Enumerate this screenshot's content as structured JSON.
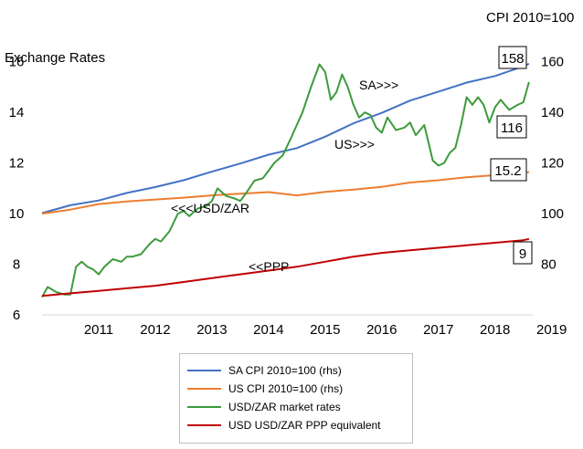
{
  "chart_data": {
    "type": "line",
    "title": "",
    "left_axis_title": "Exchange Rates",
    "right_axis_title": "CPI 2010=100",
    "x_ticks": [
      "2011",
      "2012",
      "2013",
      "2014",
      "2015",
      "2016",
      "2017",
      "2018",
      "2019"
    ],
    "x_range": [
      2010.5,
      2019.15
    ],
    "left_axis": {
      "ylim": [
        6,
        17
      ],
      "ticks": [
        6,
        8,
        10,
        12,
        14,
        16
      ]
    },
    "right_axis": {
      "ylim": [
        60,
        170
      ],
      "ticks": [
        80,
        100,
        120,
        140,
        160
      ]
    },
    "grid": false,
    "legend_position": "bottom",
    "series": [
      {
        "name": "SA CPI 2010=100 (rhs)",
        "axis": "right",
        "color": "#4472c4",
        "x": [
          2010.5,
          2011.0,
          2011.5,
          2012.0,
          2012.5,
          2013.0,
          2013.5,
          2014.0,
          2014.5,
          2015.0,
          2015.5,
          2016.0,
          2016.5,
          2017.0,
          2017.5,
          2018.0,
          2018.5,
          2019.0,
          2019.1
        ],
        "values": [
          100.2,
          103.3,
          105.2,
          108.2,
          110.5,
          113.2,
          116.6,
          119.8,
          123.3,
          125.9,
          130.4,
          135.7,
          139.8,
          144.7,
          148.2,
          151.8,
          154.4,
          158.2,
          159.2
        ]
      },
      {
        "name": "US CPI 2010=100 (rhs)",
        "axis": "right",
        "color": "#ed7d31",
        "x": [
          2010.5,
          2011.0,
          2011.5,
          2012.0,
          2012.5,
          2013.0,
          2013.5,
          2014.0,
          2014.5,
          2015.0,
          2015.5,
          2016.0,
          2016.5,
          2017.0,
          2017.5,
          2018.0,
          2018.5,
          2019.0,
          2019.1
        ],
        "values": [
          100.0,
          101.6,
          103.8,
          104.8,
          105.6,
          106.3,
          107.2,
          107.9,
          108.5,
          107.2,
          108.6,
          109.5,
          110.6,
          112.3,
          113.2,
          114.4,
          115.2,
          116.2,
          116.4
        ]
      },
      {
        "name": "USD/ZAR market rates",
        "axis": "left",
        "color": "#3d9a3d",
        "x": [
          2010.5,
          2010.6,
          2010.75,
          2010.9,
          2011.0,
          2011.1,
          2011.2,
          2011.3,
          2011.4,
          2011.5,
          2011.6,
          2011.75,
          2011.9,
          2012.0,
          2012.1,
          2012.25,
          2012.4,
          2012.5,
          2012.6,
          2012.75,
          2012.9,
          2013.0,
          2013.1,
          2013.25,
          2013.4,
          2013.5,
          2013.6,
          2013.75,
          2013.9,
          2014.0,
          2014.1,
          2014.25,
          2014.4,
          2014.5,
          2014.6,
          2014.75,
          2014.9,
          2015.0,
          2015.1,
          2015.25,
          2015.4,
          2015.5,
          2015.6,
          2015.7,
          2015.8,
          2015.9,
          2016.0,
          2016.1,
          2016.2,
          2016.3,
          2016.4,
          2016.5,
          2016.6,
          2016.75,
          2016.9,
          2017.0,
          2017.1,
          2017.25,
          2017.4,
          2017.5,
          2017.6,
          2017.7,
          2017.8,
          2017.9,
          2018.0,
          2018.1,
          2018.2,
          2018.3,
          2018.4,
          2018.5,
          2018.6,
          2018.75,
          2018.9,
          2019.0,
          2019.1
        ],
        "values": [
          6.7,
          7.1,
          6.9,
          6.8,
          6.8,
          7.9,
          8.1,
          7.9,
          7.8,
          7.6,
          7.9,
          8.2,
          8.1,
          8.3,
          8.3,
          8.4,
          8.8,
          9.0,
          8.9,
          9.3,
          10.0,
          10.1,
          9.9,
          10.2,
          10.3,
          10.5,
          11.0,
          10.7,
          10.6,
          10.5,
          10.8,
          11.3,
          11.4,
          11.7,
          12.0,
          12.3,
          13.0,
          13.5,
          14.0,
          15.0,
          15.9,
          15.6,
          14.5,
          14.8,
          15.5,
          15.0,
          14.3,
          13.8,
          14.0,
          13.9,
          13.4,
          13.2,
          13.8,
          13.3,
          13.4,
          13.6,
          13.1,
          13.5,
          12.1,
          11.9,
          12.0,
          12.4,
          12.6,
          13.5,
          14.6,
          14.3,
          14.6,
          14.3,
          13.6,
          14.2,
          14.5,
          14.1,
          14.3,
          14.4,
          15.2
        ]
      },
      {
        "name": "USD USD/ZAR PPP equivalent",
        "axis": "left",
        "color": "#c00000",
        "x": [
          2010.5,
          2011.0,
          2011.5,
          2012.0,
          2012.5,
          2013.0,
          2013.5,
          2014.0,
          2014.5,
          2015.0,
          2015.5,
          2016.0,
          2016.5,
          2017.0,
          2017.5,
          2018.0,
          2018.5,
          2019.0,
          2019.1
        ],
        "values": [
          6.75,
          6.85,
          6.95,
          7.05,
          7.15,
          7.3,
          7.45,
          7.6,
          7.75,
          7.9,
          8.1,
          8.3,
          8.45,
          8.55,
          8.65,
          8.75,
          8.85,
          8.95,
          9.0
        ]
      }
    ],
    "annotations": [
      {
        "text": "SA>>>",
        "series": 0
      },
      {
        "text": "US>>>",
        "series": 1
      },
      {
        "text": "<<<USD/ZAR",
        "series": 2
      },
      {
        "text": "<<PPP",
        "series": 3
      }
    ],
    "callouts": [
      "158",
      "116",
      "15.2",
      "9"
    ]
  }
}
